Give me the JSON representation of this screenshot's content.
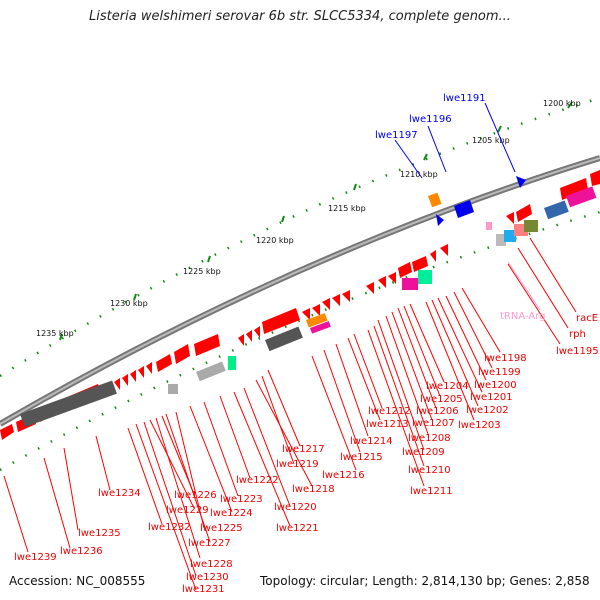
{
  "title": "Listeria welshimeri serovar 6b str. SLCC5334, complete genom...",
  "footer": {
    "accession": "Accession: NC_008555",
    "topology": "Topology: circular; Length: 2,814,130 bp; Genes: 2,858"
  },
  "scale_labels": [
    "1200 kbp",
    "1205 kbp",
    "1210 kbp",
    "1215 kbp",
    "1220 kbp",
    "1225 kbp",
    "1230 kbp",
    "1235 kbp"
  ],
  "blue_labels": [
    "lwe1191",
    "lwe1196",
    "lwe1197"
  ],
  "red_labels": [
    "racE",
    "rph",
    "lwe1195",
    "lwe1198",
    "lwe1199",
    "lwe1200",
    "lwe1201",
    "lwe1202",
    "lwe1203",
    "lwe1204",
    "lwe1205",
    "lwe1206",
    "lwe1207",
    "lwe1208",
    "lwe1209",
    "lwe1210",
    "lwe1211",
    "lwe1212",
    "lwe1213",
    "lwe1214",
    "lwe1215",
    "lwe1216",
    "lwe1217",
    "lwe1218",
    "lwe1219",
    "lwe1220",
    "lwe1221",
    "lwe1222",
    "lwe1223",
    "lwe1224",
    "lwe1225",
    "lwe1226",
    "lwe1227",
    "lwe1228",
    "lwe1229",
    "lwe1230",
    "lwe1231",
    "lwe1232",
    "lwe1234",
    "lwe1235",
    "lwe1236",
    "lwe1239"
  ],
  "pink_labels": [
    "tRNA-Arg"
  ],
  "colors": {
    "gene": "#ff0000",
    "blue": "#0000ee",
    "trna": "#ff99cc",
    "backbone": "#888888",
    "tick": "#138a13"
  }
}
